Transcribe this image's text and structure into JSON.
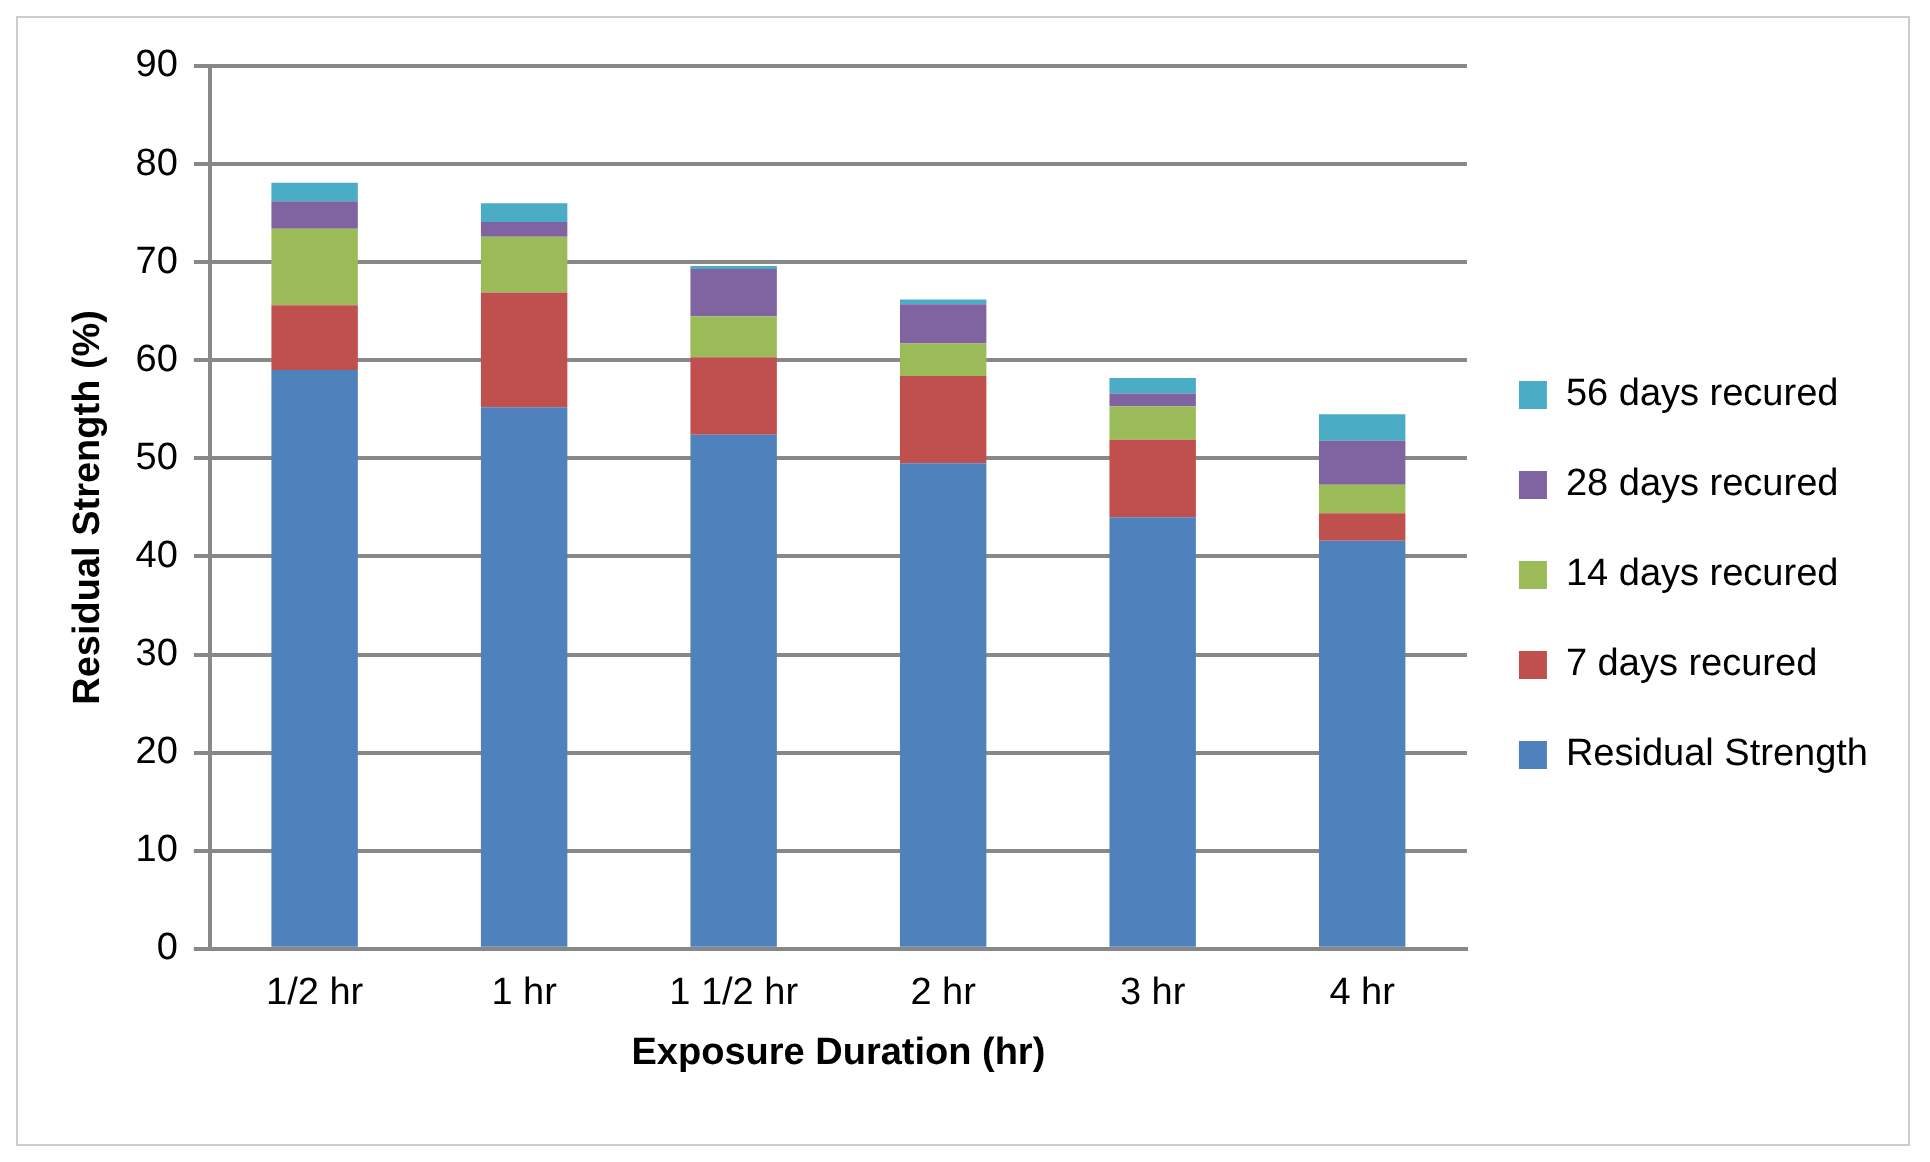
{
  "chart_data": {
    "type": "bar",
    "stacked": true,
    "xlabel": "Exposure Duration (hr)",
    "ylabel": "Residual Strength (%)",
    "categories": [
      "1/2 hr",
      "1 hr",
      "1 1/2 hr",
      "2 hr",
      "3 hr",
      "4 hr"
    ],
    "series": [
      {
        "name": "Residual Strength",
        "color": "#4f81bd",
        "values": [
          59.0,
          55.2,
          52.4,
          49.5,
          44.0,
          41.6
        ]
      },
      {
        "name": "7 days recured",
        "color": "#c0504d",
        "values": [
          6.6,
          11.7,
          7.9,
          8.9,
          7.9,
          2.8
        ]
      },
      {
        "name": "14 days recured",
        "color": "#9bbb59",
        "values": [
          7.8,
          5.7,
          4.2,
          3.3,
          3.4,
          2.9
        ]
      },
      {
        "name": "28 days recured",
        "color": "#8064a2",
        "values": [
          2.8,
          1.5,
          4.8,
          4.0,
          1.3,
          4.5
        ]
      },
      {
        "name": "56 days recured",
        "color": "#4bacc6",
        "values": [
          1.9,
          1.9,
          0.3,
          0.5,
          1.6,
          2.7
        ]
      }
    ],
    "ylim": [
      0,
      90
    ],
    "yticks": [
      0,
      10,
      20,
      30,
      40,
      50,
      60,
      70,
      80,
      90
    ],
    "grid": "y",
    "legend": "right"
  }
}
